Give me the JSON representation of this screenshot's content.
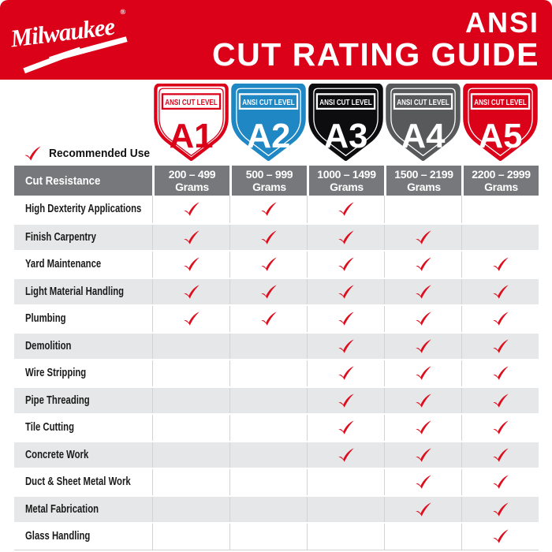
{
  "header": {
    "brand": "Milwaukee",
    "brand_mark": "®",
    "title_line1": "ANSI",
    "title_line2": "CUT RATING GUIDE"
  },
  "legend": {
    "label": "Recommended Use"
  },
  "shields": [
    {
      "banner": "ANSI CUT LEVEL",
      "level": "A1",
      "fill": "#FFFFFF",
      "line": "#DB0119",
      "text_color": "#DB0119"
    },
    {
      "banner": "ANSI CUT LEVEL",
      "level": "A2",
      "fill": "#1E87C4",
      "line": "#FFFFFF",
      "text_color": "#FFFFFF"
    },
    {
      "banner": "ANSI CUT LEVEL",
      "level": "A3",
      "fill": "#0D0D0F",
      "line": "#FFFFFF",
      "text_color": "#FFFFFF"
    },
    {
      "banner": "ANSI CUT LEVEL",
      "level": "A4",
      "fill": "#58595B",
      "line": "#FFFFFF",
      "text_color": "#FFFFFF"
    },
    {
      "banner": "ANSI CUT LEVEL",
      "level": "A5",
      "fill": "#DB0119",
      "line": "#FFFFFF",
      "text_color": "#FFFFFF"
    }
  ],
  "table": {
    "corner_header": "Cut Resistance",
    "columns": [
      {
        "range": "200 – 499",
        "unit": "Grams"
      },
      {
        "range": "500 – 999",
        "unit": "Grams"
      },
      {
        "range": "1000 – 1499",
        "unit": "Grams"
      },
      {
        "range": "1500 – 2199",
        "unit": "Grams"
      },
      {
        "range": "2200 – 2999",
        "unit": "Grams"
      }
    ],
    "rows": [
      {
        "label": "High Dexterity Applications",
        "checks": [
          true,
          true,
          true,
          false,
          false
        ]
      },
      {
        "label": "Finish Carpentry",
        "checks": [
          true,
          true,
          true,
          true,
          false
        ]
      },
      {
        "label": "Yard Maintenance",
        "checks": [
          true,
          true,
          true,
          true,
          true
        ]
      },
      {
        "label": "Light Material Handling",
        "checks": [
          true,
          true,
          true,
          true,
          true
        ]
      },
      {
        "label": "Plumbing",
        "checks": [
          true,
          true,
          true,
          true,
          true
        ]
      },
      {
        "label": "Demolition",
        "checks": [
          false,
          false,
          true,
          true,
          true
        ]
      },
      {
        "label": "Wire Stripping",
        "checks": [
          false,
          false,
          true,
          true,
          true
        ]
      },
      {
        "label": "Pipe Threading",
        "checks": [
          false,
          false,
          true,
          true,
          true
        ]
      },
      {
        "label": "Tile Cutting",
        "checks": [
          false,
          false,
          true,
          true,
          true
        ]
      },
      {
        "label": "Concrete Work",
        "checks": [
          false,
          false,
          true,
          true,
          true
        ]
      },
      {
        "label": "Duct & Sheet Metal Work",
        "checks": [
          false,
          false,
          false,
          true,
          true
        ]
      },
      {
        "label": "Metal Fabrication",
        "checks": [
          false,
          false,
          false,
          true,
          true
        ]
      },
      {
        "label": "Glass Handling",
        "checks": [
          false,
          false,
          false,
          false,
          true
        ]
      }
    ]
  },
  "colors": {
    "brand_red": "#DB0119",
    "check_red": "#DE0D1E",
    "shield_blue": "#1E87C4",
    "shield_black": "#0D0D0F",
    "shield_gray": "#58595B",
    "table_header_gray": "#77787B",
    "row_alt_gray": "#E6E7E8",
    "grid_line": "#D1D3D4",
    "header_text": "#FFFFFF"
  }
}
